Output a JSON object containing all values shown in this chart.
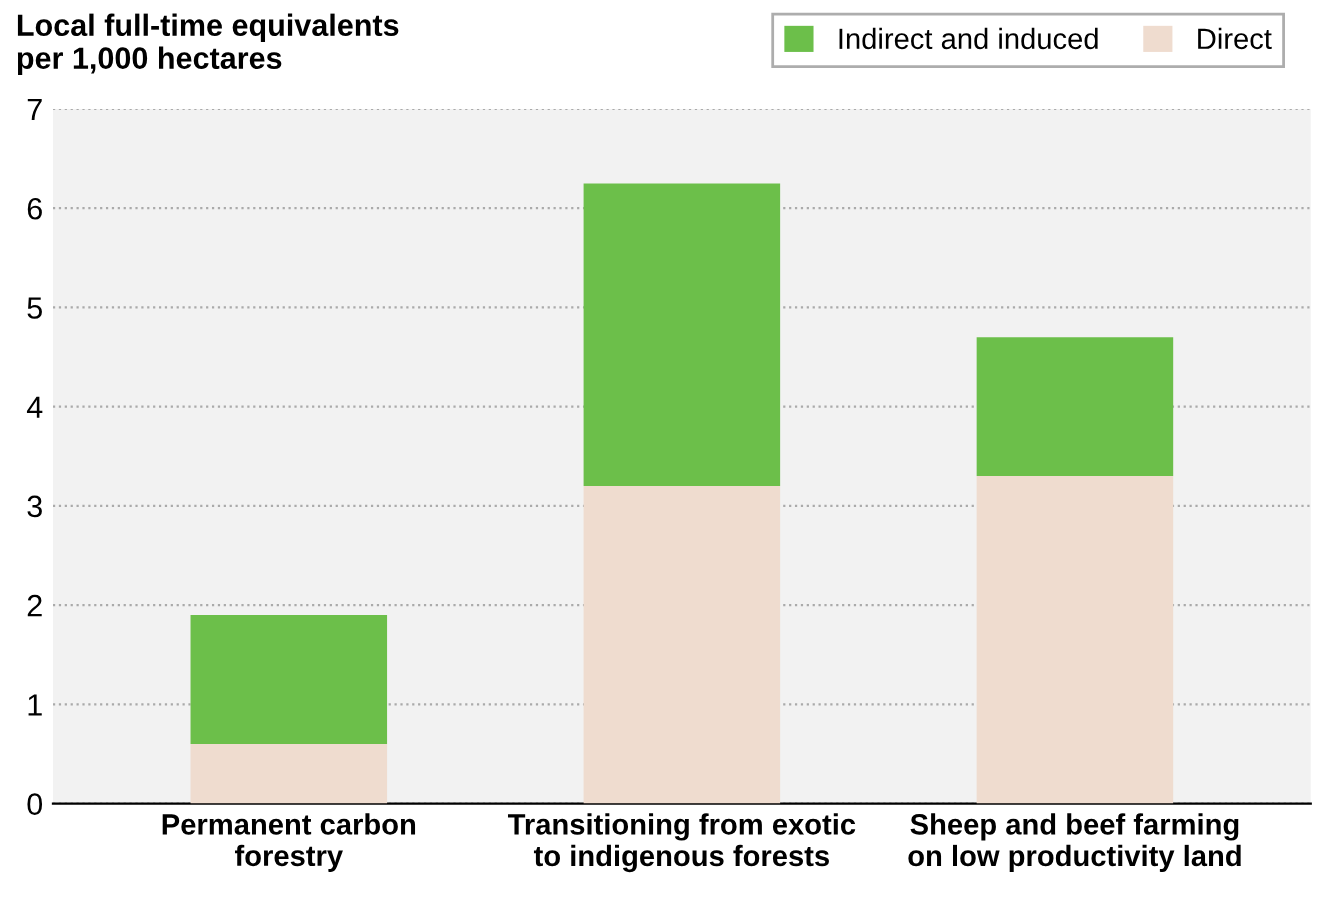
{
  "chart_data": {
    "type": "bar",
    "stacked": true,
    "ylabel": "Local full-time equivalents\nper 1,000 hectares",
    "categories": [
      "Permanent carbon\nforestry",
      "Transitioning from exotic\nto indigenous forests",
      "Sheep and beef farming\non low productivity land"
    ],
    "series": [
      {
        "name": "Direct",
        "color": "#efdccf",
        "values": [
          0.6,
          3.2,
          3.3
        ]
      },
      {
        "name": "Indirect and induced",
        "color": "#6cbf4a",
        "values": [
          1.3,
          3.05,
          1.4
        ]
      }
    ],
    "ylim": [
      0,
      7
    ],
    "yticks": [
      0,
      1,
      2,
      3,
      4,
      5,
      6,
      7
    ],
    "grid": "y",
    "legend": "top right"
  }
}
